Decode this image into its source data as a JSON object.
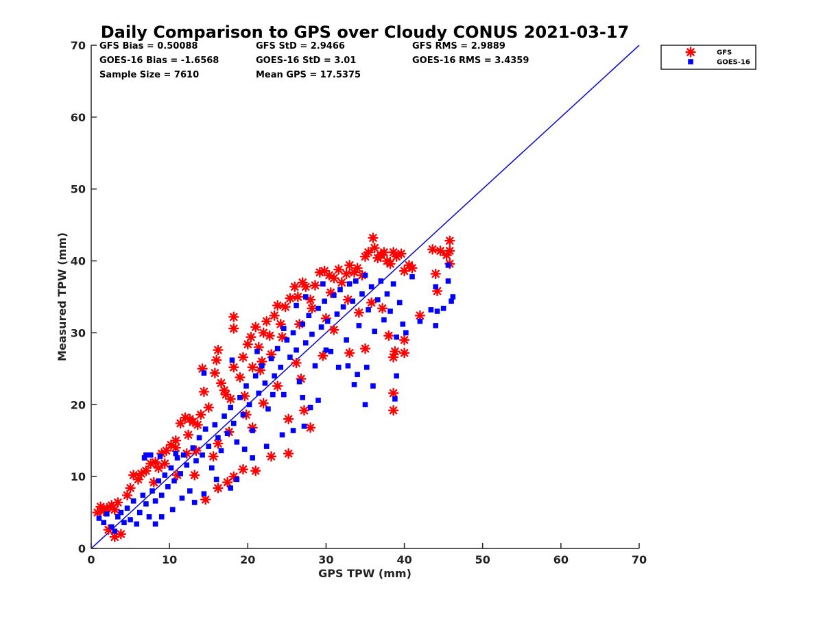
{
  "chart_data": {
    "type": "scatter",
    "title": "Daily Comparison to GPS over Cloudy CONUS 2021-03-17",
    "xlabel": "GPS TPW (mm)",
    "ylabel": "Measured TPW (mm)",
    "xlim": [
      0,
      70
    ],
    "ylim": [
      0,
      70
    ],
    "xticks": [
      "0",
      "10",
      "20",
      "30",
      "40",
      "50",
      "60",
      "70"
    ],
    "yticks": [
      "0",
      "10",
      "20",
      "30",
      "40",
      "50",
      "60",
      "70"
    ],
    "grid": false,
    "legend_position": "outside-top-right",
    "stats": [
      {
        "text": "GFS Bias = 0.50088"
      },
      {
        "text": "GFS StD = 2.9466"
      },
      {
        "text": "GFS RMS = 2.9889"
      },
      {
        "text": "GOES-16 Bias = -1.6568"
      },
      {
        "text": "GOES-16 StD = 3.01"
      },
      {
        "text": "GOES-16 RMS = 3.4359"
      },
      {
        "text": "Sample Size = 7610"
      },
      {
        "text": "Mean GPS = 17.5375"
      }
    ],
    "reference_line": {
      "x": [
        0,
        70
      ],
      "y": [
        0,
        70
      ],
      "color": "#1010cc"
    },
    "series": [
      {
        "name": "GFS",
        "marker": "asterisk",
        "color": "#ff0000",
        "points": [
          [
            0.8,
            5.0
          ],
          [
            1.2,
            5.8
          ],
          [
            1.6,
            5.2
          ],
          [
            2.0,
            5.6
          ],
          [
            2.6,
            6.0
          ],
          [
            3.0,
            5.4
          ],
          [
            3.4,
            6.4
          ],
          [
            3.0,
            1.6
          ],
          [
            2.2,
            2.6
          ],
          [
            3.8,
            2.0
          ],
          [
            4.6,
            7.4
          ],
          [
            5.0,
            8.4
          ],
          [
            5.4,
            10.2
          ],
          [
            6.0,
            9.6
          ],
          [
            6.4,
            10.4
          ],
          [
            7.0,
            10.8
          ],
          [
            7.6,
            11.8
          ],
          [
            8.2,
            12.0
          ],
          [
            8.6,
            11.2
          ],
          [
            9.0,
            13.2
          ],
          [
            9.6,
            13.6
          ],
          [
            10.2,
            14.4
          ],
          [
            10.8,
            15.0
          ],
          [
            11.4,
            17.4
          ],
          [
            12.0,
            18.2
          ],
          [
            12.6,
            18.0
          ],
          [
            13.0,
            17.6
          ],
          [
            13.6,
            17.2
          ],
          [
            14.0,
            18.6
          ],
          [
            14.4,
            21.8
          ],
          [
            14.2,
            25.0
          ],
          [
            15.0,
            19.6
          ],
          [
            15.8,
            24.4
          ],
          [
            16.0,
            26.2
          ],
          [
            16.2,
            27.6
          ],
          [
            16.6,
            23.0
          ],
          [
            17.0,
            22.0
          ],
          [
            17.2,
            21.4
          ],
          [
            17.8,
            20.8
          ],
          [
            18.2,
            25.2
          ],
          [
            18.2,
            32.2
          ],
          [
            18.2,
            30.6
          ],
          [
            19.0,
            23.8
          ],
          [
            19.4,
            26.6
          ],
          [
            20.0,
            28.4
          ],
          [
            20.4,
            29.4
          ],
          [
            21.0,
            30.8
          ],
          [
            21.4,
            28.0
          ],
          [
            22.0,
            30.0
          ],
          [
            22.4,
            31.6
          ],
          [
            22.8,
            29.6
          ],
          [
            23.4,
            32.4
          ],
          [
            23.8,
            33.8
          ],
          [
            24.2,
            31.2
          ],
          [
            24.8,
            33.6
          ],
          [
            25.4,
            34.8
          ],
          [
            26.0,
            36.4
          ],
          [
            26.4,
            35.0
          ],
          [
            27.0,
            37.0
          ],
          [
            27.4,
            36.4
          ],
          [
            28.0,
            34.6
          ],
          [
            28.6,
            36.6
          ],
          [
            29.2,
            38.4
          ],
          [
            29.8,
            38.6
          ],
          [
            30.4,
            38.0
          ],
          [
            31.0,
            37.6
          ],
          [
            31.6,
            38.8
          ],
          [
            32.0,
            37.0
          ],
          [
            32.6,
            38.2
          ],
          [
            33.0,
            39.4
          ],
          [
            33.6,
            38.4
          ],
          [
            34.0,
            39.0
          ],
          [
            34.6,
            38.0
          ],
          [
            35.0,
            40.6
          ],
          [
            35.4,
            41.2
          ],
          [
            36.0,
            43.2
          ],
          [
            36.2,
            41.8
          ],
          [
            36.6,
            40.4
          ],
          [
            37.0,
            40.8
          ],
          [
            37.4,
            41.2
          ],
          [
            37.8,
            40.0
          ],
          [
            38.2,
            39.6
          ],
          [
            38.6,
            41.2
          ],
          [
            39.0,
            40.6
          ],
          [
            39.6,
            41.0
          ],
          [
            40.0,
            38.6
          ],
          [
            40.6,
            39.4
          ],
          [
            41.0,
            39.0
          ],
          [
            44.0,
            38.2
          ],
          [
            43.6,
            41.6
          ],
          [
            44.6,
            41.4
          ],
          [
            45.4,
            40.8
          ],
          [
            45.8,
            42.8
          ],
          [
            45.8,
            41.4
          ],
          [
            45.8,
            39.6
          ],
          [
            38.6,
            21.6
          ],
          [
            38.6,
            19.2
          ],
          [
            38.6,
            26.6
          ],
          [
            38.8,
            27.4
          ],
          [
            40.0,
            27.2
          ],
          [
            40.0,
            29.0
          ],
          [
            38.0,
            29.6
          ],
          [
            42.0,
            32.4
          ],
          [
            44.2,
            35.8
          ],
          [
            37.2,
            33.4
          ],
          [
            35.0,
            27.8
          ],
          [
            33.0,
            27.2
          ],
          [
            28.0,
            16.8
          ],
          [
            27.2,
            19.2
          ],
          [
            25.2,
            13.2
          ],
          [
            23.0,
            12.8
          ],
          [
            21.0,
            10.8
          ],
          [
            19.4,
            11.0
          ],
          [
            18.2,
            10.0
          ],
          [
            17.4,
            9.2
          ],
          [
            16.2,
            8.4
          ],
          [
            14.6,
            6.8
          ],
          [
            13.2,
            10.2
          ],
          [
            12.2,
            13.2
          ],
          [
            11.0,
            10.2
          ],
          [
            20.6,
            16.8
          ],
          [
            19.8,
            18.6
          ],
          [
            22.0,
            20.2
          ],
          [
            23.8,
            22.6
          ],
          [
            25.2,
            18.0
          ],
          [
            26.8,
            23.6
          ],
          [
            30.0,
            32.0
          ],
          [
            31.0,
            30.4
          ],
          [
            29.6,
            26.8
          ],
          [
            26.2,
            25.8
          ],
          [
            21.6,
            24.8
          ],
          [
            19.6,
            21.2
          ],
          [
            17.6,
            16.2
          ],
          [
            16.2,
            14.6
          ],
          [
            15.6,
            12.8
          ],
          [
            13.4,
            13.6
          ],
          [
            12.4,
            15.8
          ],
          [
            10.8,
            14.0
          ],
          [
            9.4,
            11.8
          ],
          [
            8.0,
            9.2
          ],
          [
            34.2,
            32.8
          ],
          [
            35.8,
            34.2
          ],
          [
            32.8,
            34.6
          ],
          [
            30.6,
            35.6
          ],
          [
            28.2,
            33.4
          ],
          [
            26.6,
            31.2
          ],
          [
            24.4,
            29.4
          ],
          [
            23.0,
            27.0
          ],
          [
            21.8,
            26.0
          ],
          [
            20.6,
            25.2
          ]
        ]
      },
      {
        "name": "GOES-16",
        "marker": "square",
        "color": "#0000ff",
        "points": [
          [
            1.0,
            4.2
          ],
          [
            1.6,
            3.6
          ],
          [
            2.0,
            4.8
          ],
          [
            2.6,
            3.0
          ],
          [
            3.0,
            2.4
          ],
          [
            3.4,
            4.4
          ],
          [
            3.8,
            5.0
          ],
          [
            4.2,
            3.6
          ],
          [
            4.6,
            5.6
          ],
          [
            5.0,
            4.0
          ],
          [
            5.4,
            6.6
          ],
          [
            5.8,
            3.4
          ],
          [
            6.2,
            5.0
          ],
          [
            6.6,
            7.4
          ],
          [
            7.0,
            6.2
          ],
          [
            7.4,
            4.4
          ],
          [
            7.8,
            8.0
          ],
          [
            8.2,
            6.6
          ],
          [
            8.6,
            9.4
          ],
          [
            9.0,
            7.4
          ],
          [
            9.4,
            10.2
          ],
          [
            9.8,
            8.6
          ],
          [
            10.2,
            11.2
          ],
          [
            10.6,
            9.4
          ],
          [
            11.0,
            12.6
          ],
          [
            11.4,
            10.4
          ],
          [
            11.8,
            13.0
          ],
          [
            12.2,
            11.6
          ],
          [
            12.6,
            8.0
          ],
          [
            13.0,
            14.0
          ],
          [
            13.4,
            12.2
          ],
          [
            13.8,
            15.4
          ],
          [
            14.2,
            13.0
          ],
          [
            14.6,
            16.6
          ],
          [
            15.0,
            14.2
          ],
          [
            15.4,
            11.2
          ],
          [
            15.8,
            17.2
          ],
          [
            16.2,
            15.4
          ],
          [
            16.6,
            13.6
          ],
          [
            17.0,
            18.4
          ],
          [
            17.4,
            16.0
          ],
          [
            17.8,
            19.6
          ],
          [
            18.2,
            17.4
          ],
          [
            18.6,
            14.8
          ],
          [
            19.0,
            21.0
          ],
          [
            19.4,
            18.6
          ],
          [
            19.8,
            22.6
          ],
          [
            20.2,
            20.0
          ],
          [
            20.6,
            16.4
          ],
          [
            21.0,
            24.0
          ],
          [
            21.4,
            21.6
          ],
          [
            21.8,
            25.4
          ],
          [
            22.2,
            23.0
          ],
          [
            22.6,
            19.4
          ],
          [
            23.0,
            26.4
          ],
          [
            23.4,
            24.0
          ],
          [
            23.8,
            27.8
          ],
          [
            24.2,
            25.2
          ],
          [
            24.6,
            21.4
          ],
          [
            25.0,
            29.0
          ],
          [
            25.4,
            26.6
          ],
          [
            25.8,
            30.0
          ],
          [
            26.2,
            27.6
          ],
          [
            26.6,
            23.2
          ],
          [
            27.0,
            31.2
          ],
          [
            27.4,
            28.6
          ],
          [
            27.8,
            32.4
          ],
          [
            28.2,
            29.8
          ],
          [
            28.6,
            25.4
          ],
          [
            29.0,
            33.4
          ],
          [
            29.4,
            30.8
          ],
          [
            29.8,
            34.4
          ],
          [
            30.2,
            31.6
          ],
          [
            30.6,
            27.4
          ],
          [
            31.0,
            35.2
          ],
          [
            31.4,
            32.6
          ],
          [
            31.8,
            36.0
          ],
          [
            32.2,
            33.6
          ],
          [
            32.6,
            29.0
          ],
          [
            33.0,
            36.8
          ],
          [
            33.4,
            34.4
          ],
          [
            33.8,
            37.2
          ],
          [
            34.2,
            31.0
          ],
          [
            34.6,
            35.4
          ],
          [
            35.0,
            38.0
          ],
          [
            35.4,
            33.2
          ],
          [
            35.8,
            36.4
          ],
          [
            36.2,
            30.2
          ],
          [
            36.6,
            34.6
          ],
          [
            37.0,
            37.2
          ],
          [
            37.4,
            31.8
          ],
          [
            37.8,
            35.4
          ],
          [
            38.2,
            33.0
          ],
          [
            38.6,
            36.8
          ],
          [
            39.0,
            29.4
          ],
          [
            39.4,
            34.2
          ],
          [
            39.8,
            31.2
          ],
          [
            40.2,
            30.0
          ],
          [
            41.0,
            37.8
          ],
          [
            42.0,
            31.6
          ],
          [
            43.4,
            33.2
          ],
          [
            44.0,
            31.0
          ],
          [
            44.0,
            36.4
          ],
          [
            44.2,
            33.0
          ],
          [
            45.0,
            33.4
          ],
          [
            45.6,
            37.2
          ],
          [
            46.0,
            34.4
          ],
          [
            46.2,
            35.0
          ],
          [
            45.6,
            39.4
          ],
          [
            39.0,
            24.0
          ],
          [
            38.8,
            20.8
          ],
          [
            35.0,
            20.0
          ],
          [
            35.2,
            25.2
          ],
          [
            34.0,
            24.2
          ],
          [
            31.6,
            25.2
          ],
          [
            28.0,
            19.6
          ],
          [
            27.2,
            17.0
          ],
          [
            25.8,
            16.4
          ],
          [
            24.4,
            15.8
          ],
          [
            22.4,
            14.2
          ],
          [
            20.6,
            12.6
          ],
          [
            18.6,
            9.6
          ],
          [
            17.8,
            8.4
          ],
          [
            16.0,
            9.6
          ],
          [
            14.4,
            7.6
          ],
          [
            13.2,
            6.4
          ],
          [
            11.6,
            7.0
          ],
          [
            10.4,
            5.4
          ],
          [
            9.0,
            4.4
          ],
          [
            8.2,
            3.4
          ],
          [
            7.0,
            13.0
          ],
          [
            7.6,
            13.0
          ],
          [
            6.8,
            12.6
          ],
          [
            8.8,
            12.8
          ],
          [
            10.8,
            13.2
          ],
          [
            14.4,
            24.4
          ],
          [
            18.0,
            26.2
          ],
          [
            21.2,
            27.4
          ],
          [
            24.6,
            30.6
          ],
          [
            26.2,
            33.8
          ],
          [
            27.4,
            35.0
          ],
          [
            29.6,
            36.8
          ],
          [
            27.0,
            21.0
          ],
          [
            29.0,
            20.6
          ],
          [
            30.0,
            27.6
          ],
          [
            32.8,
            25.4
          ],
          [
            33.6,
            22.8
          ],
          [
            36.0,
            22.6
          ],
          [
            23.2,
            21.4
          ],
          [
            19.6,
            13.8
          ]
        ]
      }
    ]
  }
}
